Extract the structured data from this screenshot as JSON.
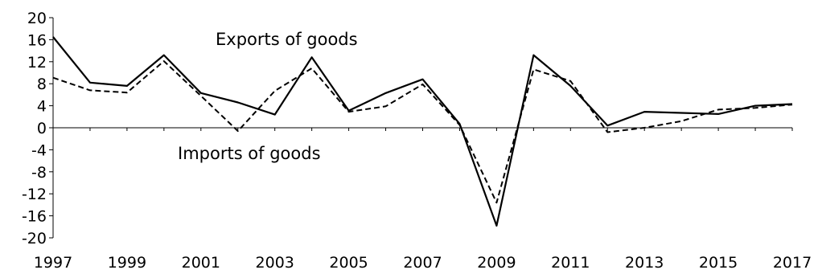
{
  "chart_data": {
    "type": "line",
    "title": "",
    "xlabel": "",
    "ylabel": "",
    "x": [
      1997,
      1998,
      1999,
      2000,
      2001,
      2002,
      2003,
      2004,
      2005,
      2006,
      2007,
      2008,
      2009,
      2010,
      2011,
      2012,
      2013,
      2014,
      2015,
      2016,
      2017
    ],
    "x_tick_labels": [
      "1997",
      "1999",
      "2001",
      "2003",
      "2005",
      "2007",
      "2009",
      "2011",
      "2013",
      "2015",
      "2017"
    ],
    "y_tick_labels": [
      "20",
      "16",
      "12",
      "8",
      "4",
      "0",
      "-4",
      "-8",
      "-12",
      "-16",
      "-20"
    ],
    "ylim": [
      -20,
      20
    ],
    "xlim": [
      1997,
      2017
    ],
    "grid": false,
    "series": [
      {
        "name": "Exports of goods",
        "style": "solid",
        "color": "#000000",
        "values": [
          16.5,
          8.2,
          7.6,
          13.2,
          6.3,
          4.6,
          2.4,
          12.8,
          3.1,
          6.3,
          8.8,
          0.7,
          -17.8,
          13.2,
          7.6,
          0.4,
          2.9,
          2.7,
          2.5,
          4.0,
          4.3
        ]
      },
      {
        "name": "Imports of goods",
        "style": "dashed",
        "color": "#000000",
        "values": [
          9.1,
          6.8,
          6.4,
          12.1,
          5.8,
          -0.6,
          6.7,
          10.8,
          2.9,
          3.9,
          7.9,
          0.5,
          -13.6,
          10.6,
          8.5,
          -0.8,
          0.0,
          1.2,
          3.3,
          3.6,
          4.2
        ]
      }
    ]
  }
}
